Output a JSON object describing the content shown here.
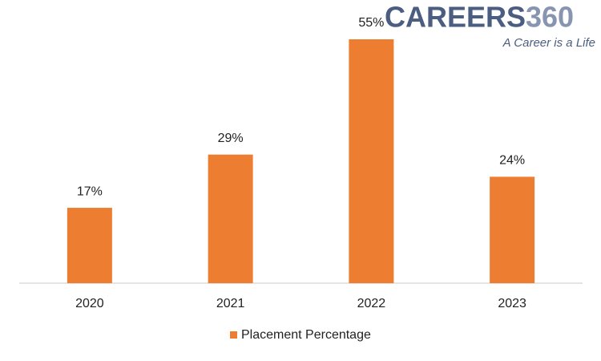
{
  "chart_data": {
    "type": "bar",
    "categories": [
      "2020",
      "2021",
      "2022",
      "2023"
    ],
    "series": [
      {
        "name": "Placement Percentage",
        "color": "#ed7d31",
        "values": [
          17,
          29,
          55,
          24
        ],
        "value_labels": [
          "17%",
          "29%",
          "55%",
          "24%"
        ]
      }
    ],
    "legend": "bottom"
  },
  "logo": {
    "brand": "CAREERS",
    "number": "360",
    "tagline": "A Career is a Life"
  }
}
